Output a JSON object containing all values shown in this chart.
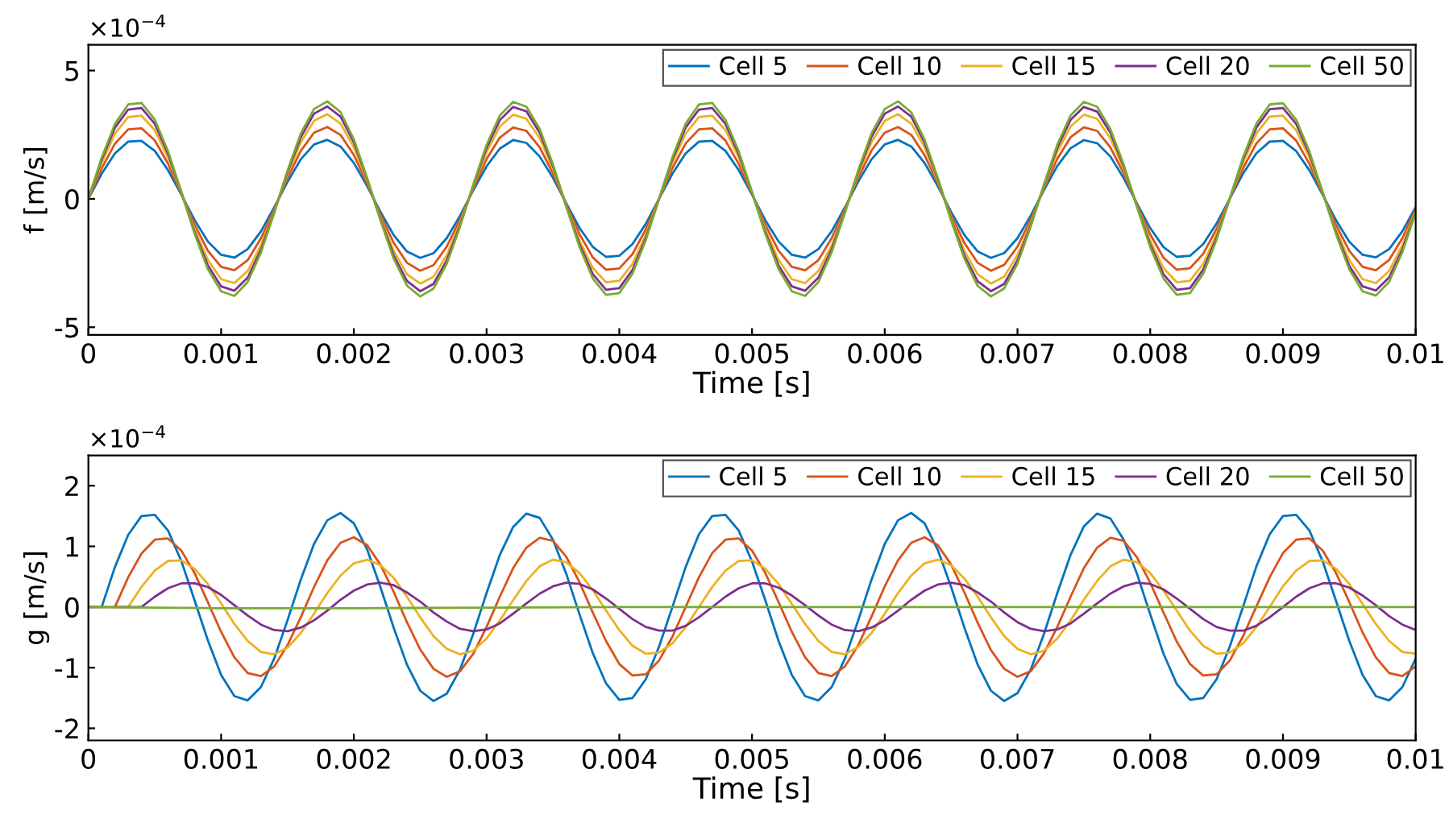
{
  "chart_data": [
    {
      "type": "line",
      "xlabel": "Time [s]",
      "ylabel": "f [m/s]",
      "annotations": [
        "×10$^{−4}$"
      ],
      "legend": "top right",
      "grid": false,
      "line_style": "solid",
      "xlim": [
        0,
        0.01
      ],
      "ylim": [
        -5.3,
        6
      ],
      "xticks": [
        0,
        0.001,
        0.002,
        0.003,
        0.004,
        0.005,
        0.006,
        0.007,
        0.008,
        0.009,
        0.01
      ],
      "yticks": [
        -5,
        0,
        5
      ],
      "x": [
        0,
        0.0001,
        0.0002,
        0.0003,
        0.0004,
        0.0005,
        0.0006,
        0.0007,
        0.0008,
        0.0009,
        0.001,
        0.0011,
        0.0012,
        0.0013,
        0.0014,
        0.0015,
        0.0016,
        0.0017,
        0.0018,
        0.0019,
        0.002,
        0.0021,
        0.0022,
        0.0023,
        0.0024,
        0.0025,
        0.0026,
        0.0027,
        0.0028,
        0.0029,
        0.003,
        0.0031,
        0.0032,
        0.0033,
        0.0034,
        0.0035,
        0.0036,
        0.0037,
        0.0038,
        0.0039,
        0.004,
        0.0041,
        0.0042,
        0.0043,
        0.0044,
        0.0045,
        0.0046,
        0.0047,
        0.0048,
        0.0049,
        0.005,
        0.0051,
        0.0052,
        0.0053,
        0.0054,
        0.0055,
        0.0056,
        0.0057,
        0.0058,
        0.0059,
        0.006,
        0.0061,
        0.0062,
        0.0063,
        0.0064,
        0.0065,
        0.0066,
        0.0067,
        0.0068,
        0.0069,
        0.007,
        0.0071,
        0.0072,
        0.0073,
        0.0074,
        0.0075,
        0.0076,
        0.0077,
        0.0078,
        0.0079,
        0.008,
        0.0081,
        0.0082,
        0.0083,
        0.0084,
        0.0085,
        0.0086,
        0.0087,
        0.0088,
        0.0089,
        0.009,
        0.0091,
        0.0092,
        0.0093,
        0.0094,
        0.0095,
        0.0096,
        0.0097,
        0.0098,
        0.0099,
        0.01
      ],
      "series": [
        {
          "name": "Cell 5",
          "color": "#0072bd",
          "values": [
            0,
            0.98,
            1.77,
            2.23,
            2.26,
            1.87,
            1.12,
            0.17,
            -0.82,
            -1.66,
            -2.18,
            -2.29,
            -1.96,
            -1.27,
            -0.33,
            0.66,
            1.54,
            2.12,
            2.3,
            2.04,
            1.4,
            0.5,
            -0.5,
            -1.41,
            -2.05,
            -2.3,
            -2.12,
            -1.53,
            -0.66,
            0.34,
            1.27,
            1.96,
            2.29,
            2.18,
            1.65,
            0.82,
            -0.17,
            -1.13,
            -1.87,
            -2.26,
            -2.22,
            -1.76,
            -0.97,
            0.01,
            0.98,
            1.77,
            2.23,
            2.26,
            1.87,
            1.12,
            0.16,
            -0.83,
            -1.66,
            -2.18,
            -2.29,
            -1.96,
            -1.26,
            -0.33,
            0.67,
            1.54,
            2.12,
            2.3,
            2.04,
            1.4,
            0.49,
            -0.51,
            -1.41,
            -2.05,
            -2.3,
            -2.11,
            -1.53,
            -0.65,
            0.35,
            1.28,
            1.97,
            2.29,
            2.17,
            1.65,
            0.81,
            -0.18,
            -1.14,
            -1.88,
            -2.26,
            -2.22,
            -1.76,
            -0.96,
            0.01,
            0.99,
            1.78,
            2.23,
            2.26,
            1.86,
            1.11,
            0.15,
            -0.83,
            -1.67,
            -2.18,
            -2.28,
            -1.96,
            -1.26,
            -0.32
          ]
        },
        {
          "name": "Cell 10",
          "color": "#d95319",
          "values": [
            0,
            1.19,
            2.15,
            2.71,
            2.75,
            2.28,
            1.37,
            0.2,
            -1.0,
            -2.02,
            -2.65,
            -2.78,
            -2.39,
            -1.54,
            -0.41,
            0.81,
            1.87,
            2.58,
            2.8,
            2.49,
            1.71,
            0.6,
            -0.61,
            -1.71,
            -2.49,
            -2.8,
            -2.58,
            -1.86,
            -0.8,
            0.41,
            1.55,
            2.39,
            2.78,
            2.65,
            2.01,
            0.99,
            -0.21,
            -1.37,
            -2.28,
            -2.76,
            -2.71,
            -2.15,
            -1.18,
            0.01,
            1.2,
            2.16,
            2.71,
            2.75,
            2.27,
            1.36,
            0.2,
            -1.01,
            -2.02,
            -2.65,
            -2.78,
            -2.39,
            -1.53,
            -0.4,
            0.82,
            1.88,
            2.58,
            2.8,
            2.49,
            1.7,
            0.6,
            -0.62,
            -1.72,
            -2.49,
            -2.8,
            -2.57,
            -1.86,
            -0.8,
            0.42,
            1.56,
            2.4,
            2.79,
            2.65,
            2.0,
            0.99,
            -0.22,
            -1.38,
            -2.29,
            -2.76,
            -2.7,
            -2.14,
            -1.17,
            0.02,
            1.2,
            2.16,
            2.71,
            2.75,
            2.27,
            1.36,
            0.19,
            -1.02,
            -2.03,
            -2.65,
            -2.78,
            -2.38,
            -1.53,
            -0.39
          ]
        },
        {
          "name": "Cell 15",
          "color": "#edb120",
          "values": [
            0,
            1.4,
            2.54,
            3.19,
            3.24,
            2.68,
            1.61,
            0.24,
            -1.18,
            -2.38,
            -3.13,
            -3.28,
            -2.81,
            -1.82,
            -0.48,
            0.95,
            2.2,
            3.04,
            3.3,
            2.93,
            2.01,
            0.71,
            -0.72,
            -2.02,
            -2.94,
            -3.3,
            -3.04,
            -2.2,
            -0.94,
            0.49,
            1.82,
            2.82,
            3.28,
            3.12,
            2.37,
            1.17,
            -0.25,
            -1.62,
            -2.69,
            -3.25,
            -3.19,
            -2.53,
            -1.39,
            0.01,
            1.41,
            2.54,
            3.19,
            3.24,
            2.68,
            1.61,
            0.23,
            -1.19,
            -2.38,
            -3.13,
            -3.28,
            -2.81,
            -1.81,
            -0.47,
            0.96,
            2.21,
            3.04,
            3.3,
            2.93,
            2.01,
            0.7,
            -0.73,
            -2.03,
            -2.94,
            -3.3,
            -3.03,
            -2.19,
            -0.94,
            0.5,
            1.83,
            2.82,
            3.28,
            3.12,
            2.36,
            1.16,
            -0.26,
            -1.63,
            -2.7,
            -3.25,
            -3.19,
            -2.52,
            -1.38,
            0.02,
            1.42,
            2.55,
            3.2,
            3.24,
            2.67,
            1.6,
            0.22,
            -1.2,
            -2.39,
            -3.13,
            -3.28,
            -2.81,
            -1.8,
            -0.46
          ]
        },
        {
          "name": "Cell 20",
          "color": "#7e2f8e",
          "values": [
            0,
            1.53,
            2.77,
            3.48,
            3.54,
            2.93,
            1.76,
            0.26,
            -1.29,
            -2.59,
            -3.41,
            -3.58,
            -3.07,
            -1.98,
            -0.52,
            1.04,
            2.4,
            3.32,
            3.6,
            3.2,
            2.2,
            0.78,
            -0.79,
            -2.2,
            -3.2,
            -3.6,
            -3.31,
            -2.4,
            -1.03,
            0.53,
            1.99,
            3.07,
            3.58,
            3.41,
            2.58,
            1.28,
            -0.27,
            -1.77,
            -2.93,
            -3.54,
            -3.48,
            -2.76,
            -1.52,
            0.01,
            1.54,
            2.78,
            3.48,
            3.54,
            2.92,
            1.75,
            0.25,
            -1.3,
            -2.6,
            -3.41,
            -3.58,
            -3.07,
            -1.97,
            -0.51,
            1.05,
            2.41,
            3.32,
            3.6,
            3.2,
            2.19,
            0.77,
            -0.8,
            -2.21,
            -3.21,
            -3.6,
            -3.31,
            -2.39,
            -1.02,
            0.54,
            2.0,
            3.08,
            3.58,
            3.4,
            2.58,
            1.27,
            -0.28,
            -1.78,
            -2.94,
            -3.54,
            -3.48,
            -2.75,
            -1.51,
            0.02,
            1.55,
            2.78,
            3.49,
            3.54,
            2.92,
            1.74,
            0.24,
            -1.31,
            -2.61,
            -3.41,
            -3.57,
            -3.06,
            -1.97,
            -0.5
          ]
        },
        {
          "name": "Cell 50",
          "color": "#77ac30",
          "values": [
            0,
            1.61,
            2.92,
            3.68,
            3.74,
            3.09,
            1.86,
            0.28,
            -1.36,
            -2.74,
            -3.6,
            -3.78,
            -3.24,
            -2.09,
            -0.55,
            1.1,
            2.54,
            3.5,
            3.8,
            3.38,
            2.32,
            0.82,
            -0.83,
            -2.33,
            -3.38,
            -3.8,
            -3.5,
            -2.53,
            -1.09,
            0.56,
            2.1,
            3.25,
            3.78,
            3.59,
            2.73,
            1.35,
            -0.29,
            -1.87,
            -3.1,
            -3.74,
            -3.67,
            -2.91,
            -1.6,
            0.01,
            1.62,
            2.93,
            3.68,
            3.74,
            3.08,
            1.85,
            0.27,
            -1.37,
            -2.74,
            -3.6,
            -3.78,
            -3.24,
            -2.08,
            -0.54,
            1.11,
            2.55,
            3.5,
            3.8,
            3.37,
            2.31,
            0.81,
            -0.84,
            -2.33,
            -3.39,
            -3.8,
            -3.49,
            -2.52,
            -1.08,
            0.57,
            2.11,
            3.25,
            3.78,
            3.59,
            2.72,
            1.34,
            -0.3,
            -1.88,
            -3.1,
            -3.74,
            -3.67,
            -2.91,
            -1.59,
            0.02,
            1.63,
            2.93,
            3.68,
            3.73,
            3.08,
            1.84,
            0.25,
            -1.38,
            -2.75,
            -3.6,
            -3.77,
            -3.23,
            -2.07,
            -0.53
          ]
        }
      ]
    },
    {
      "type": "line",
      "xlabel": "Time [s]",
      "ylabel": "g [m/s]",
      "annotations": [
        "×10$^{−4}$"
      ],
      "legend": "top right",
      "grid": false,
      "line_style": "solid",
      "xlim": [
        0,
        0.01
      ],
      "ylim": [
        -2.2,
        2.5
      ],
      "xticks": [
        0,
        0.001,
        0.002,
        0.003,
        0.004,
        0.005,
        0.006,
        0.007,
        0.008,
        0.009,
        0.01
      ],
      "yticks": [
        -2,
        -1,
        0,
        1,
        2
      ],
      "x": [
        0,
        0.0001,
        0.0002,
        0.0003,
        0.0004,
        0.0005,
        0.0006,
        0.0007,
        0.0008,
        0.0009,
        0.001,
        0.0011,
        0.0012,
        0.0013,
        0.0014,
        0.0015,
        0.0016,
        0.0017,
        0.0018,
        0.0019,
        0.002,
        0.0021,
        0.0022,
        0.0023,
        0.0024,
        0.0025,
        0.0026,
        0.0027,
        0.0028,
        0.0029,
        0.003,
        0.0031,
        0.0032,
        0.0033,
        0.0034,
        0.0035,
        0.0036,
        0.0037,
        0.0038,
        0.0039,
        0.004,
        0.0041,
        0.0042,
        0.0043,
        0.0044,
        0.0045,
        0.0046,
        0.0047,
        0.0048,
        0.0049,
        0.005,
        0.0051,
        0.0052,
        0.0053,
        0.0054,
        0.0055,
        0.0056,
        0.0057,
        0.0058,
        0.0059,
        0.006,
        0.0061,
        0.0062,
        0.0063,
        0.0064,
        0.0065,
        0.0066,
        0.0067,
        0.0068,
        0.0069,
        0.007,
        0.0071,
        0.0072,
        0.0073,
        0.0074,
        0.0075,
        0.0076,
        0.0077,
        0.0078,
        0.0079,
        0.008,
        0.0081,
        0.0082,
        0.0083,
        0.0084,
        0.0085,
        0.0086,
        0.0087,
        0.0088,
        0.0089,
        0.009,
        0.0091,
        0.0092,
        0.0093,
        0.0094,
        0.0095,
        0.0096,
        0.0097,
        0.0098,
        0.0099,
        0.01
      ],
      "series": [
        {
          "name": "Cell 5",
          "color": "#0072bd",
          "values": [
            0,
            0,
            0.66,
            1.19,
            1.5,
            1.52,
            1.26,
            0.76,
            0.11,
            -0.55,
            -1.12,
            -1.47,
            -1.54,
            -1.32,
            -0.85,
            -0.22,
            0.45,
            1.04,
            1.43,
            1.55,
            1.38,
            0.95,
            0.33,
            -0.34,
            -0.95,
            -1.38,
            -1.55,
            -1.43,
            -1.03,
            -0.44,
            0.23,
            0.86,
            1.32,
            1.54,
            1.47,
            1.11,
            0.55,
            -0.12,
            -0.76,
            -1.26,
            -1.53,
            -1.5,
            -1.19,
            -0.65,
            0.0,
            0.66,
            1.2,
            1.5,
            1.52,
            1.26,
            0.75,
            0.11,
            -0.56,
            -1.12,
            -1.47,
            -1.54,
            -1.32,
            -0.85,
            -0.22,
            0.45,
            1.04,
            1.43,
            1.55,
            1.38,
            0.94,
            0.33,
            -0.34,
            -0.95,
            -1.38,
            -1.55,
            -1.42,
            -1.03,
            -0.44,
            0.23,
            0.86,
            1.33,
            1.54,
            1.46,
            1.11,
            0.55,
            -0.12,
            -0.77,
            -1.27,
            -1.53,
            -1.5,
            -1.19,
            -0.65,
            0.01,
            0.67,
            1.2,
            1.5,
            1.52,
            1.26,
            0.75,
            0.1,
            -0.56,
            -1.12,
            -1.47,
            -1.54,
            -1.32,
            -0.85
          ]
        },
        {
          "name": "Cell 10",
          "color": "#d95319",
          "values": [
            0,
            0,
            0,
            0.49,
            0.88,
            1.11,
            1.13,
            0.93,
            0.56,
            0.08,
            -0.41,
            -0.83,
            -1.09,
            -1.14,
            -0.98,
            -0.63,
            -0.17,
            0.33,
            0.77,
            1.06,
            1.15,
            1.02,
            0.7,
            0.25,
            -0.25,
            -0.7,
            -1.02,
            -1.15,
            -1.06,
            -0.77,
            -0.33,
            0.17,
            0.64,
            0.98,
            1.14,
            1.09,
            0.83,
            0.41,
            -0.09,
            -0.56,
            -0.94,
            -1.13,
            -1.11,
            -0.88,
            -0.49,
            0.0,
            0.49,
            0.89,
            1.11,
            1.13,
            0.93,
            0.56,
            0.08,
            -0.41,
            -0.83,
            -1.09,
            -1.14,
            -0.98,
            -0.63,
            -0.16,
            0.34,
            0.77,
            1.06,
            1.15,
            1.02,
            0.7,
            0.24,
            -0.26,
            -0.71,
            -1.02,
            -1.15,
            -1.06,
            -0.76,
            -0.33,
            0.17,
            0.64,
            0.98,
            1.14,
            1.09,
            0.82,
            0.4,
            -0.09,
            -0.57,
            -0.94,
            -1.13,
            -1.11,
            -0.88,
            -0.48,
            0.01,
            0.49,
            0.89,
            1.11,
            1.13,
            0.93,
            0.56,
            0.08,
            -0.42,
            -0.83,
            -1.09,
            -1.14,
            -0.98
          ]
        },
        {
          "name": "Cell 15",
          "color": "#edb120",
          "values": [
            null,
            null,
            0,
            0,
            0.33,
            0.6,
            0.76,
            0.77,
            0.63,
            0.38,
            0.06,
            -0.28,
            -0.56,
            -0.74,
            -0.78,
            -0.67,
            -0.43,
            -0.11,
            0.23,
            0.52,
            0.72,
            0.78,
            0.69,
            0.48,
            0.17,
            -0.17,
            -0.48,
            -0.69,
            -0.78,
            -0.72,
            -0.52,
            -0.22,
            0.11,
            0.43,
            0.67,
            0.78,
            0.74,
            0.56,
            0.28,
            -0.06,
            -0.38,
            -0.64,
            -0.77,
            -0.75,
            -0.6,
            -0.33,
            0.0,
            0.33,
            0.6,
            0.76,
            0.77,
            0.63,
            0.38,
            0.05,
            -0.28,
            -0.56,
            -0.74,
            -0.78,
            -0.66,
            -0.43,
            -0.11,
            0.23,
            0.52,
            0.72,
            0.78,
            0.69,
            0.47,
            0.17,
            -0.17,
            -0.48,
            -0.69,
            -0.78,
            -0.72,
            -0.52,
            -0.22,
            0.12,
            0.43,
            0.67,
            0.78,
            0.74,
            0.56,
            0.27,
            -0.06,
            -0.39,
            -0.64,
            -0.77,
            -0.75,
            -0.6,
            -0.33,
            0.0,
            0.34,
            0.6,
            0.76,
            0.77,
            0.63,
            0.38,
            0.05,
            -0.28,
            -0.56,
            -0.74,
            -0.77
          ]
        },
        {
          "name": "Cell 20",
          "color": "#7e2f8e",
          "values": [
            null,
            null,
            0,
            0,
            0,
            0.17,
            0.31,
            0.39,
            0.39,
            0.33,
            0.2,
            0.03,
            -0.14,
            -0.29,
            -0.38,
            -0.4,
            -0.34,
            -0.22,
            -0.06,
            0.12,
            0.27,
            0.37,
            0.4,
            0.36,
            0.24,
            0.09,
            -0.09,
            -0.24,
            -0.36,
            -0.4,
            -0.37,
            -0.27,
            -0.11,
            0.06,
            0.22,
            0.34,
            0.4,
            0.38,
            0.29,
            0.14,
            -0.03,
            -0.2,
            -0.33,
            -0.39,
            -0.39,
            -0.31,
            -0.17,
            0.0,
            0.17,
            0.31,
            0.39,
            0.39,
            0.32,
            0.19,
            0.03,
            -0.14,
            -0.29,
            -0.38,
            -0.4,
            -0.34,
            -0.22,
            -0.06,
            0.12,
            0.27,
            0.37,
            0.4,
            0.36,
            0.24,
            0.09,
            -0.09,
            -0.25,
            -0.36,
            -0.4,
            -0.37,
            -0.27,
            -0.11,
            0.06,
            0.22,
            0.34,
            0.4,
            0.38,
            0.29,
            0.14,
            -0.03,
            -0.2,
            -0.33,
            -0.39,
            -0.39,
            -0.31,
            -0.17,
            0.0,
            0.17,
            0.31,
            0.39,
            0.39,
            0.32,
            0.19,
            0.03,
            -0.15,
            -0.29,
            -0.38
          ]
        },
        {
          "name": "Cell 50",
          "color": "#77ac30",
          "x": [
            0,
            0.001,
            0.002,
            0.003,
            0.004,
            0.005,
            0.006,
            0.007,
            0.008,
            0.009,
            0.01
          ],
          "values": [
            0,
            -0.02,
            -0.02,
            -0.01,
            0,
            0,
            0,
            0,
            0,
            0,
            0
          ]
        }
      ]
    }
  ]
}
